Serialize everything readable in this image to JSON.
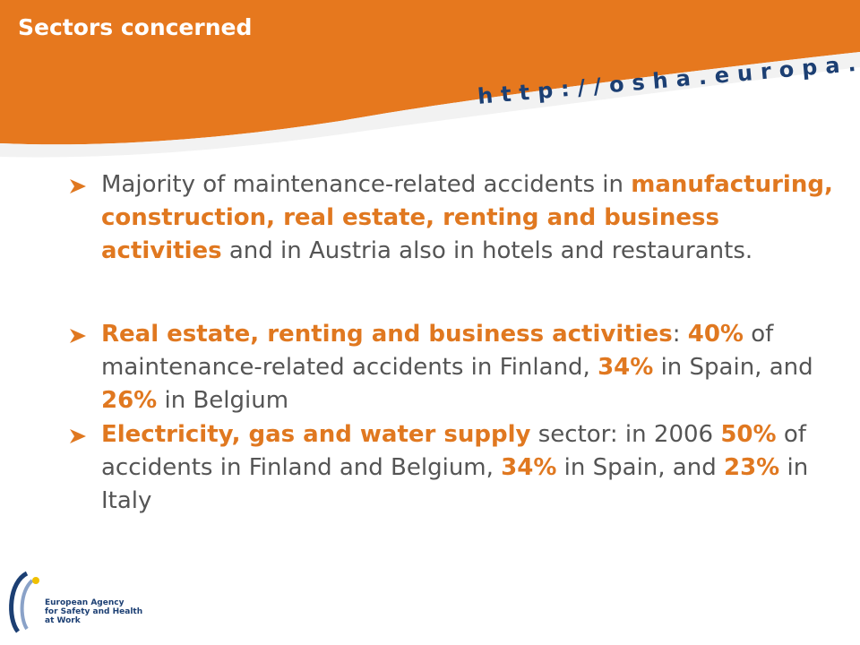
{
  "header": {
    "title": "Sectors concerned",
    "url": "http://osha.europa.eu"
  },
  "bullets": [
    [
      {
        "text": "Majority of maintenance-related accidents in ",
        "bold": false
      },
      {
        "text": "manufacturing, construction, real estate, renting and business activities",
        "bold": true
      },
      {
        "text": " and in Austria also in hotels and restaurants.",
        "bold": false
      }
    ],
    [
      {
        "text": "Real estate, renting and business activities",
        "bold": true
      },
      {
        "text": ": ",
        "bold": false
      },
      {
        "text": "40%",
        "bold": true
      },
      {
        "text": " of maintenance-related accidents in Finland, ",
        "bold": false
      },
      {
        "text": "34%",
        "bold": true
      },
      {
        "text": " in Spain, and ",
        "bold": false
      },
      {
        "text": "26%",
        "bold": true
      },
      {
        "text": " in Belgium",
        "bold": false
      }
    ],
    [
      {
        "text": "Electricity, gas and water supply",
        "bold": true
      },
      {
        "text": " sector: in 2006 ",
        "bold": false
      },
      {
        "text": "50%",
        "bold": true
      },
      {
        "text": " of accidents in Finland and Belgium, ",
        "bold": false
      },
      {
        "text": "34%",
        "bold": true
      },
      {
        "text": " in Spain, and ",
        "bold": false
      },
      {
        "text": "23%",
        "bold": true
      },
      {
        "text": " in Italy",
        "bold": false
      }
    ]
  ],
  "logo": {
    "lines": [
      "European Agency",
      "for Safety and Health",
      "at Work"
    ]
  }
}
